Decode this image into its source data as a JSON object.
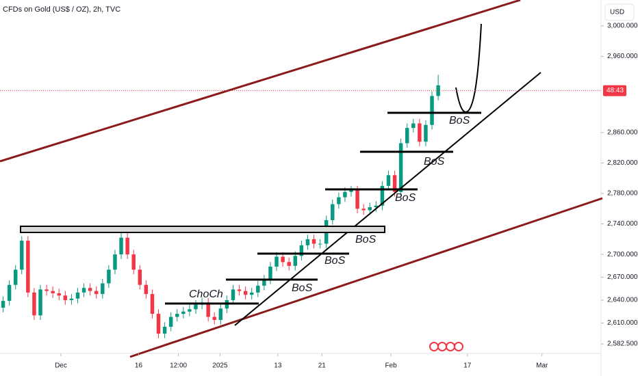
{
  "header": {
    "title": "CFDs on Gold (US$ / OZ), 2h, TVC",
    "currency": "USD"
  },
  "chart_data": {
    "type": "candlestick",
    "open": [
      2630,
      2639,
      2660,
      2680,
      2718,
      2650,
      2620,
      2654,
      2652,
      2649,
      2646,
      2640,
      2642,
      2650,
      2656,
      2652,
      2648,
      2662,
      2680,
      2700,
      2722,
      2700,
      2680,
      2660,
      2648,
      2622,
      2596,
      2605,
      2618,
      2622,
      2625,
      2628,
      2634,
      2637,
      2618,
      2614,
      2629,
      2640,
      2654,
      2652,
      2647,
      2650,
      2659,
      2667,
      2684,
      2697,
      2690,
      2685,
      2698,
      2712,
      2720,
      2714,
      2714,
      2745,
      2766,
      2775,
      2782,
      2784,
      2760,
      2758,
      2762,
      2764,
      2790,
      2804,
      2782,
      2846,
      2866,
      2872,
      2848,
      2870,
      2908
    ],
    "high": [
      2645,
      2666,
      2686,
      2724,
      2724,
      2656,
      2660,
      2660,
      2658,
      2655,
      2652,
      2648,
      2656,
      2662,
      2662,
      2658,
      2668,
      2686,
      2706,
      2728,
      2728,
      2706,
      2686,
      2666,
      2654,
      2628,
      2611,
      2624,
      2628,
      2631,
      2634,
      2640,
      2643,
      2643,
      2624,
      2635,
      2646,
      2660,
      2660,
      2658,
      2656,
      2665,
      2673,
      2690,
      2703,
      2703,
      2696,
      2704,
      2718,
      2726,
      2726,
      2720,
      2751,
      2772,
      2781,
      2788,
      2790,
      2790,
      2766,
      2768,
      2770,
      2796,
      2810,
      2810,
      2852,
      2872,
      2878,
      2878,
      2876,
      2914,
      2936
    ],
    "low": [
      2624,
      2633,
      2654,
      2674,
      2644,
      2614,
      2614,
      2646,
      2643,
      2640,
      2634,
      2634,
      2636,
      2644,
      2646,
      2642,
      2642,
      2656,
      2674,
      2694,
      2694,
      2674,
      2654,
      2642,
      2616,
      2590,
      2590,
      2599,
      2612,
      2616,
      2619,
      2622,
      2628,
      2612,
      2608,
      2608,
      2623,
      2634,
      2646,
      2641,
      2641,
      2644,
      2653,
      2661,
      2678,
      2684,
      2679,
      2679,
      2692,
      2706,
      2708,
      2708,
      2708,
      2739,
      2760,
      2769,
      2776,
      2754,
      2752,
      2752,
      2756,
      2758,
      2784,
      2776,
      2776,
      2840,
      2860,
      2842,
      2842,
      2864,
      2902
    ],
    "close": [
      2639,
      2660,
      2680,
      2718,
      2650,
      2620,
      2654,
      2652,
      2649,
      2646,
      2640,
      2642,
      2650,
      2656,
      2652,
      2648,
      2662,
      2680,
      2700,
      2722,
      2700,
      2680,
      2660,
      2648,
      2622,
      2596,
      2605,
      2618,
      2622,
      2625,
      2628,
      2634,
      2637,
      2618,
      2614,
      2629,
      2640,
      2654,
      2652,
      2647,
      2650,
      2659,
      2667,
      2684,
      2697,
      2690,
      2685,
      2698,
      2712,
      2720,
      2714,
      2714,
      2745,
      2766,
      2775,
      2782,
      2784,
      2760,
      2758,
      2762,
      2764,
      2790,
      2804,
      2782,
      2846,
      2866,
      2872,
      2848,
      2870,
      2908,
      2922
    ],
    "up_color": "#089981",
    "down_color": "#f23645",
    "xlim": [
      -0.5,
      96.2
    ],
    "xticks": [
      {
        "value": 9.3,
        "label": "Dec"
      },
      {
        "value": 21.8,
        "label": "16"
      },
      {
        "value": 28.2,
        "label": "12:00"
      },
      {
        "value": 34.9,
        "label": "2025"
      },
      {
        "value": 44.2,
        "label": "13"
      },
      {
        "value": 51.3,
        "label": "21"
      },
      {
        "value": 62.4,
        "label": "Feb"
      },
      {
        "value": 74.7,
        "label": "17"
      },
      {
        "value": 86.7,
        "label": "Mar"
      }
    ],
    "ylim": [
      2570,
      3034
    ],
    "yticks": [
      {
        "value": 3000,
        "label": "3,000.000"
      },
      {
        "value": 2960,
        "label": "2,960.000"
      },
      {
        "value": 2860,
        "label": "2,860.000"
      },
      {
        "value": 2820,
        "label": "2,820.000"
      },
      {
        "value": 2780,
        "label": "2,780.000"
      },
      {
        "value": 2740,
        "label": "2,740.000"
      },
      {
        "value": 2700,
        "label": "2,700.000"
      },
      {
        "value": 2670,
        "label": "2,670.000"
      },
      {
        "value": 2640,
        "label": "2,640.000"
      },
      {
        "value": 2610,
        "label": "2,610.000"
      },
      {
        "value": 2582.5,
        "label": "2,582.500"
      }
    ],
    "price_line": {
      "value": 2915,
      "label": "48:43",
      "color": "#f23645"
    },
    "annotations": [
      "ChoCh",
      "BoS",
      "BoS",
      "BoS",
      "BoS",
      "BoS",
      "BoS"
    ]
  }
}
